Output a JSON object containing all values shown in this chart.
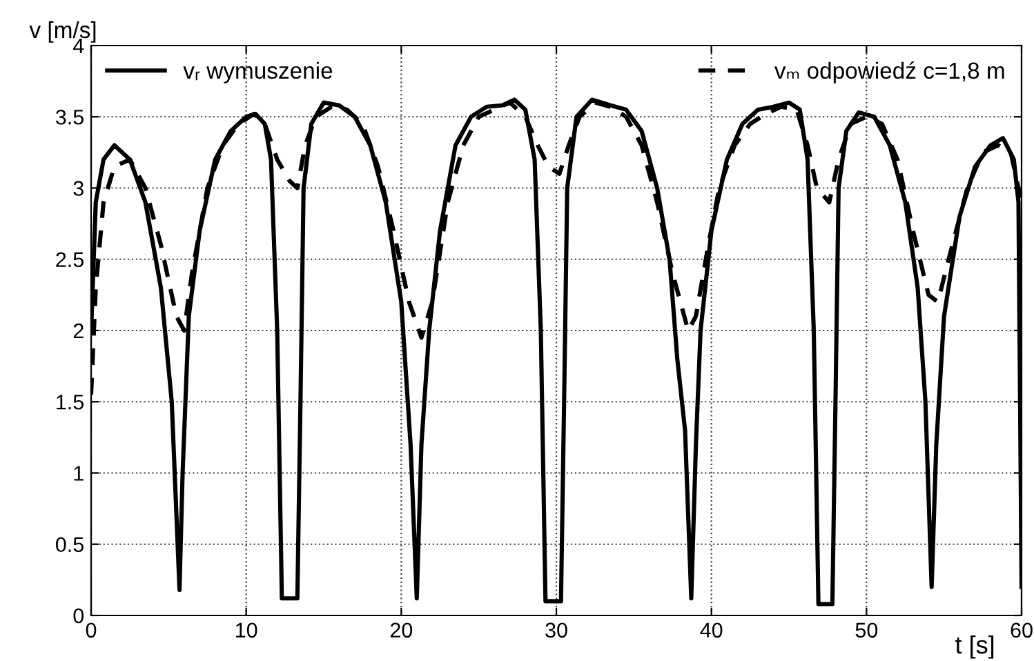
{
  "chart_data": {
    "type": "line",
    "xlabel": "t [s]",
    "ylabel": "v [m/s]",
    "xlim": [
      0,
      60
    ],
    "ylim": [
      0,
      4
    ],
    "xticks": [
      0,
      10,
      20,
      30,
      40,
      50,
      60
    ],
    "yticks": [
      0,
      0.5,
      1,
      1.5,
      2,
      2.5,
      3,
      3.5,
      4
    ],
    "grid": true,
    "legend": "top",
    "marker": "none",
    "series": [
      {
        "name": "vᵣ wymuszenie",
        "color": "#000000",
        "line_style": "solid",
        "x": [
          0,
          0.3,
          0.8,
          1.5,
          2.5,
          3.5,
          4.5,
          5.2,
          5.7,
          5.9,
          6.3,
          7,
          8,
          9,
          10,
          10.6,
          11.2,
          11.6,
          12,
          12.3,
          13.3,
          13.5,
          13.7,
          14.2,
          15,
          16,
          17,
          18,
          19,
          20,
          20.6,
          21,
          21.3,
          21.8,
          22.5,
          23.5,
          24.5,
          25.5,
          26.5,
          27.3,
          28,
          28.6,
          29,
          29.3,
          30.3,
          30.5,
          30.7,
          31.3,
          32.3,
          33.5,
          34.5,
          35.5,
          36.5,
          37.3,
          37.8,
          38.3,
          38.7,
          39,
          39.3,
          40,
          41,
          42,
          43,
          44,
          45,
          45.7,
          46.2,
          46.6,
          46.9,
          47.8,
          48,
          48.2,
          48.7,
          49.5,
          50.5,
          51.5,
          52.5,
          53.3,
          53.8,
          54.2,
          54.5,
          55,
          56,
          57,
          58,
          58.8,
          59.5,
          59.8,
          60
        ],
        "values": [
          2.0,
          2.9,
          3.2,
          3.3,
          3.2,
          2.9,
          2.3,
          1.5,
          0.18,
          1.0,
          2.1,
          2.7,
          3.2,
          3.4,
          3.5,
          3.52,
          3.45,
          3.2,
          2.0,
          0.12,
          0.12,
          1.5,
          3.0,
          3.45,
          3.6,
          3.58,
          3.5,
          3.3,
          2.9,
          2.2,
          1.2,
          0.12,
          1.2,
          2.0,
          2.7,
          3.3,
          3.5,
          3.57,
          3.58,
          3.62,
          3.55,
          3.2,
          2.0,
          0.1,
          0.1,
          1.5,
          3.0,
          3.5,
          3.62,
          3.58,
          3.55,
          3.4,
          3.0,
          2.5,
          1.8,
          1.3,
          0.12,
          1.2,
          2.0,
          2.7,
          3.2,
          3.45,
          3.55,
          3.57,
          3.6,
          3.55,
          3.2,
          2.0,
          0.08,
          0.08,
          1.5,
          3.0,
          3.4,
          3.53,
          3.5,
          3.3,
          2.9,
          2.3,
          1.5,
          0.2,
          1.2,
          2.1,
          2.8,
          3.15,
          3.3,
          3.35,
          3.2,
          2.9,
          0.2
        ]
      },
      {
        "name": "vₘ odpowiedź c=1,8 m",
        "color": "#000000",
        "line_style": "dashed",
        "x": [
          0,
          0.3,
          0.8,
          1.5,
          2.5,
          3.5,
          4.5,
          5.5,
          6,
          6.5,
          7.5,
          8.5,
          9.5,
          10.5,
          11.2,
          12,
          12.8,
          13.3,
          13.8,
          14.5,
          15.5,
          16.5,
          17.5,
          18.5,
          19.5,
          20.5,
          21.3,
          22,
          23,
          24,
          25,
          26,
          27,
          28,
          28.8,
          29.5,
          30.2,
          30.8,
          31.5,
          32.5,
          33.5,
          34.5,
          35.5,
          36.5,
          37.5,
          38.5,
          39,
          39.8,
          40.5,
          41.5,
          42.5,
          43.5,
          44.5,
          45.5,
          46.2,
          46.8,
          47.6,
          48.2,
          49,
          50,
          51,
          52,
          53,
          54,
          54.6,
          55.3,
          56.5,
          57.5,
          58.5,
          59.3,
          60
        ],
        "values": [
          1.55,
          2.3,
          2.9,
          3.15,
          3.2,
          3.0,
          2.6,
          2.1,
          2.0,
          2.4,
          3.0,
          3.3,
          3.45,
          3.52,
          3.45,
          3.2,
          3.05,
          3.0,
          3.3,
          3.5,
          3.57,
          3.55,
          3.45,
          3.15,
          2.7,
          2.2,
          1.95,
          2.2,
          2.9,
          3.3,
          3.5,
          3.55,
          3.6,
          3.5,
          3.3,
          3.15,
          3.1,
          3.3,
          3.5,
          3.6,
          3.57,
          3.5,
          3.3,
          2.9,
          2.4,
          2.0,
          2.1,
          2.6,
          3.0,
          3.3,
          3.45,
          3.52,
          3.57,
          3.55,
          3.3,
          3.0,
          2.9,
          3.2,
          3.45,
          3.5,
          3.45,
          3.2,
          2.7,
          2.25,
          2.2,
          2.5,
          3.0,
          3.25,
          3.3,
          3.25,
          2.9
        ]
      }
    ]
  }
}
